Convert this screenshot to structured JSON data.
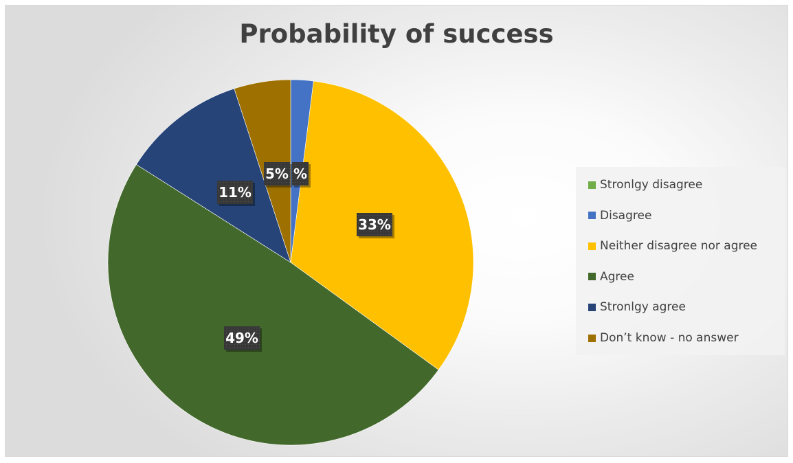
{
  "chart_data": {
    "type": "pie",
    "title": "Probability of success",
    "slices": [
      {
        "label": "Stronlgy disagree",
        "value": 0,
        "data_label": "",
        "color": "#70ad47"
      },
      {
        "label": "Disagree",
        "value": 2,
        "data_label": "%",
        "color": "#4472c4"
      },
      {
        "label": "Neither disagree nor agree",
        "value": 33,
        "data_label": "33%",
        "color": "#ffc000"
      },
      {
        "label": "Agree",
        "value": 49,
        "data_label": "49%",
        "color": "#43682b"
      },
      {
        "label": "Stronlgy agree",
        "value": 11,
        "data_label": "11%",
        "color": "#264478"
      },
      {
        "label": "Don’t know - no answer",
        "value": 5,
        "data_label": "5%",
        "color": "#9e7000"
      }
    ],
    "legend_position": "right",
    "data_label_style": "dark-box"
  }
}
